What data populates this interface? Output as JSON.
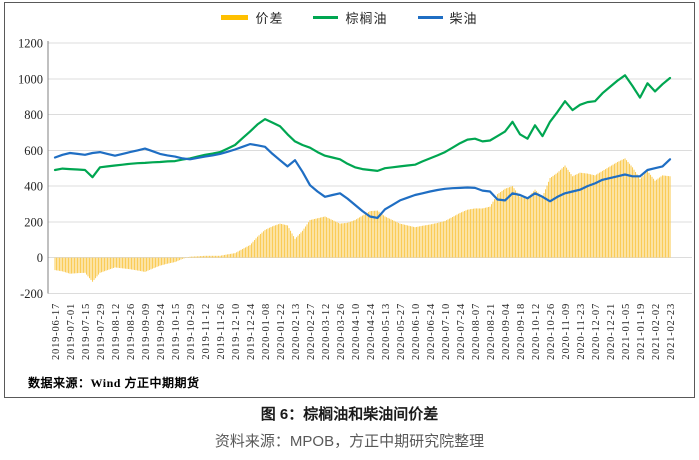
{
  "legend": [
    {
      "label": "价差",
      "color": "#FFC000",
      "type": "bar"
    },
    {
      "label": "棕榈油",
      "color": "#00A651",
      "type": "line"
    },
    {
      "label": "柴油",
      "color": "#1F6EC3",
      "type": "line"
    }
  ],
  "source_note": "数据来源：Wind 方正中期期货",
  "caption": {
    "title": "图 6：棕榈油和柴油间价差",
    "source": "资料来源：MPOB，方正中期研究院整理"
  },
  "chart_data": {
    "type": "bar+line combo",
    "title": "",
    "xlabel": "",
    "ylabel": "",
    "ylim": [
      -200,
      1200
    ],
    "y_ticks": [
      -200,
      0,
      200,
      400,
      600,
      800,
      1000,
      1200
    ],
    "grid": "horizontal",
    "legend_position": "top",
    "x_tick_labels": [
      "2019-06-17",
      "2019-07-01",
      "2019-07-15",
      "2019-07-29",
      "2019-08-12",
      "2019-08-26",
      "2019-09-09",
      "2019-09-24",
      "2019-10-15",
      "2019-10-29",
      "2019-11-12",
      "2019-11-26",
      "2019-12-10",
      "2019-12-24",
      "2020-01-08",
      "2020-01-22",
      "2020-02-13",
      "2020-02-27",
      "2020-03-12",
      "2020-03-26",
      "2020-04-10",
      "2020-04-24",
      "2020-05-13",
      "2020-05-27",
      "2020-06-10",
      "2020-06-24",
      "2020-07-10",
      "2020-07-24",
      "2020-08-07",
      "2020-08-21",
      "2020-09-04",
      "2020-09-18",
      "2020-10-12",
      "2020-10-26",
      "2020-11-09",
      "2020-11-23",
      "2020-12-07",
      "2020-12-21",
      "2021-01-05",
      "2021-01-19",
      "2021-02-02",
      "2021-02-23"
    ],
    "samples_per_interval": 2,
    "note": "series values are sampled at each x tick and at the midpoint between ticks (83 samples); spread = 棕榈油 - 柴油",
    "series": [
      {
        "name": "价差",
        "type": "bar",
        "color": "#FACC58",
        "values": [
          -70,
          -77,
          -90,
          -87,
          -85,
          -135,
          -85,
          -70,
          -55,
          -60,
          -65,
          -72,
          -80,
          -62,
          -45,
          -34,
          -25,
          -7,
          5,
          7,
          10,
          10,
          10,
          18,
          25,
          48,
          70,
          117,
          155,
          175,
          190,
          180,
          105,
          150,
          210,
          220,
          230,
          210,
          190,
          195,
          210,
          235,
          260,
          263,
          230,
          210,
          190,
          180,
          170,
          178,
          185,
          194,
          205,
          227,
          250,
          268,
          275,
          275,
          285,
          355,
          385,
          400,
          340,
          333,
          380,
          340,
          445,
          475,
          515,
          455,
          475,
          470,
          460,
          485,
          510,
          535,
          555,
          505,
          440,
          485,
          430,
          460,
          455
        ]
      },
      {
        "name": "棕榈油",
        "type": "line",
        "color": "#00A651",
        "values": [
          490,
          498,
          495,
          493,
          490,
          450,
          505,
          510,
          515,
          520,
          525,
          528,
          530,
          533,
          535,
          538,
          540,
          548,
          555,
          565,
          575,
          582,
          590,
          610,
          630,
          668,
          705,
          745,
          775,
          755,
          735,
          690,
          650,
          630,
          615,
          590,
          570,
          560,
          550,
          525,
          505,
          495,
          490,
          485,
          500,
          505,
          510,
          515,
          520,
          538,
          555,
          572,
          590,
          615,
          640,
          660,
          665,
          650,
          655,
          680,
          705,
          760,
          690,
          665,
          740,
          680,
          760,
          815,
          875,
          825,
          855,
          870,
          875,
          920,
          955,
          990,
          1020,
          960,
          895,
          975,
          930,
          970,
          1005
        ]
      },
      {
        "name": "柴油",
        "type": "line",
        "color": "#1F6EC3",
        "values": [
          560,
          575,
          585,
          580,
          575,
          585,
          590,
          580,
          570,
          580,
          590,
          600,
          610,
          595,
          580,
          572,
          565,
          555,
          550,
          558,
          565,
          572,
          580,
          592,
          605,
          620,
          635,
          628,
          620,
          580,
          545,
          510,
          545,
          480,
          405,
          370,
          340,
          350,
          360,
          330,
          295,
          260,
          230,
          222,
          270,
          295,
          320,
          335,
          350,
          360,
          370,
          378,
          385,
          388,
          390,
          392,
          390,
          375,
          370,
          325,
          320,
          360,
          350,
          332,
          360,
          340,
          315,
          340,
          360,
          370,
          380,
          400,
          415,
          435,
          445,
          455,
          465,
          455,
          455,
          490,
          500,
          510,
          550
        ]
      }
    ]
  }
}
